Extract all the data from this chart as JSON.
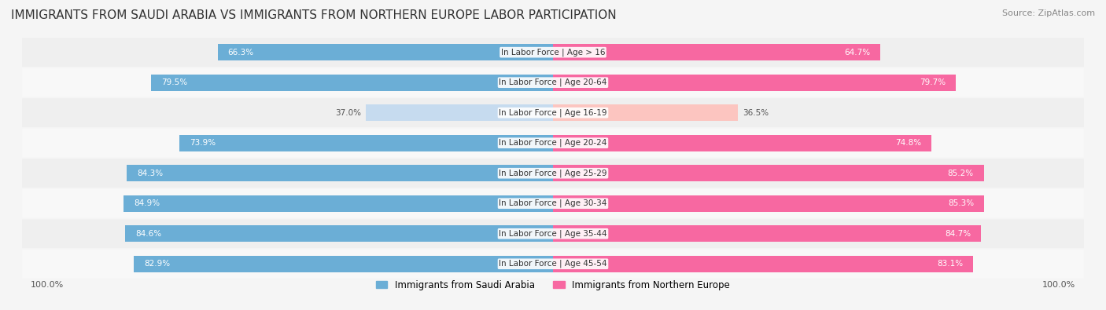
{
  "title": "IMMIGRANTS FROM SAUDI ARABIA VS IMMIGRANTS FROM NORTHERN EUROPE LABOR PARTICIPATION",
  "source": "Source: ZipAtlas.com",
  "categories": [
    "In Labor Force | Age > 16",
    "In Labor Force | Age 20-64",
    "In Labor Force | Age 16-19",
    "In Labor Force | Age 20-24",
    "In Labor Force | Age 25-29",
    "In Labor Force | Age 30-34",
    "In Labor Force | Age 35-44",
    "In Labor Force | Age 45-54"
  ],
  "saudi_values": [
    66.3,
    79.5,
    37.0,
    73.9,
    84.3,
    84.9,
    84.6,
    82.9
  ],
  "northern_values": [
    64.7,
    79.7,
    36.5,
    74.8,
    85.2,
    85.3,
    84.7,
    83.1
  ],
  "saudi_color": "#6baed6",
  "saudi_color_light": "#c6dbef",
  "northern_color": "#f768a1",
  "northern_color_light": "#fcc5c0",
  "bar_height": 0.55,
  "background_color": "#f5f5f5",
  "row_bg_light": "#ffffff",
  "legend_saudi": "Immigrants from Saudi Arabia",
  "legend_northern": "Immigrants from Northern Europe",
  "max_value": 100.0,
  "title_fontsize": 11,
  "source_fontsize": 8,
  "label_fontsize": 7.5,
  "value_fontsize": 7.5
}
